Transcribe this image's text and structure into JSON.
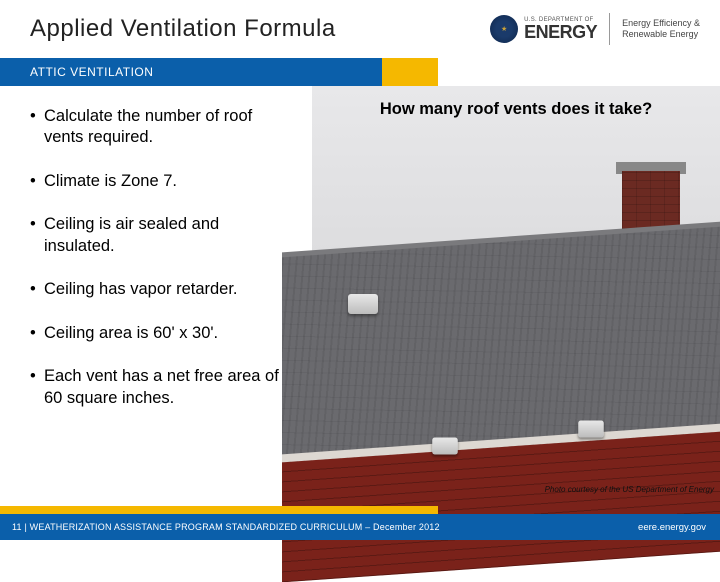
{
  "header": {
    "title": "Applied Ventilation Formula",
    "dept_label": "U.S. DEPARTMENT OF",
    "energy_word": "ENERGY",
    "eere_line1": "Energy Efficiency &",
    "eere_line2": "Renewable Energy"
  },
  "band": {
    "section_label": "ATTIC VENTILATION",
    "blue_color": "#0b5faa",
    "yellow_color": "#f5b800"
  },
  "bullets": [
    "Calculate the number of roof vents required.",
    "Climate is Zone 7.",
    "Ceiling is air sealed and insulated.",
    "Ceiling has vapor retarder.",
    "Ceiling area is 60' x 30'.",
    "Each vent has a net free area of 60 square inches."
  ],
  "photo": {
    "question": "How many roof vents does it take?",
    "credit": "Photo courtesy of the US Department of Energy",
    "roof_color": "#6a6a6e",
    "brick_color": "#6b2a22",
    "siding_color": "#7a221a",
    "sky_color": "#e0e0e2"
  },
  "footer": {
    "left_text": "11 | WEATHERIZATION ASSISTANCE PROGRAM STANDARDIZED CURRICULUM – December 2012",
    "right_text": "eere.energy.gov"
  }
}
